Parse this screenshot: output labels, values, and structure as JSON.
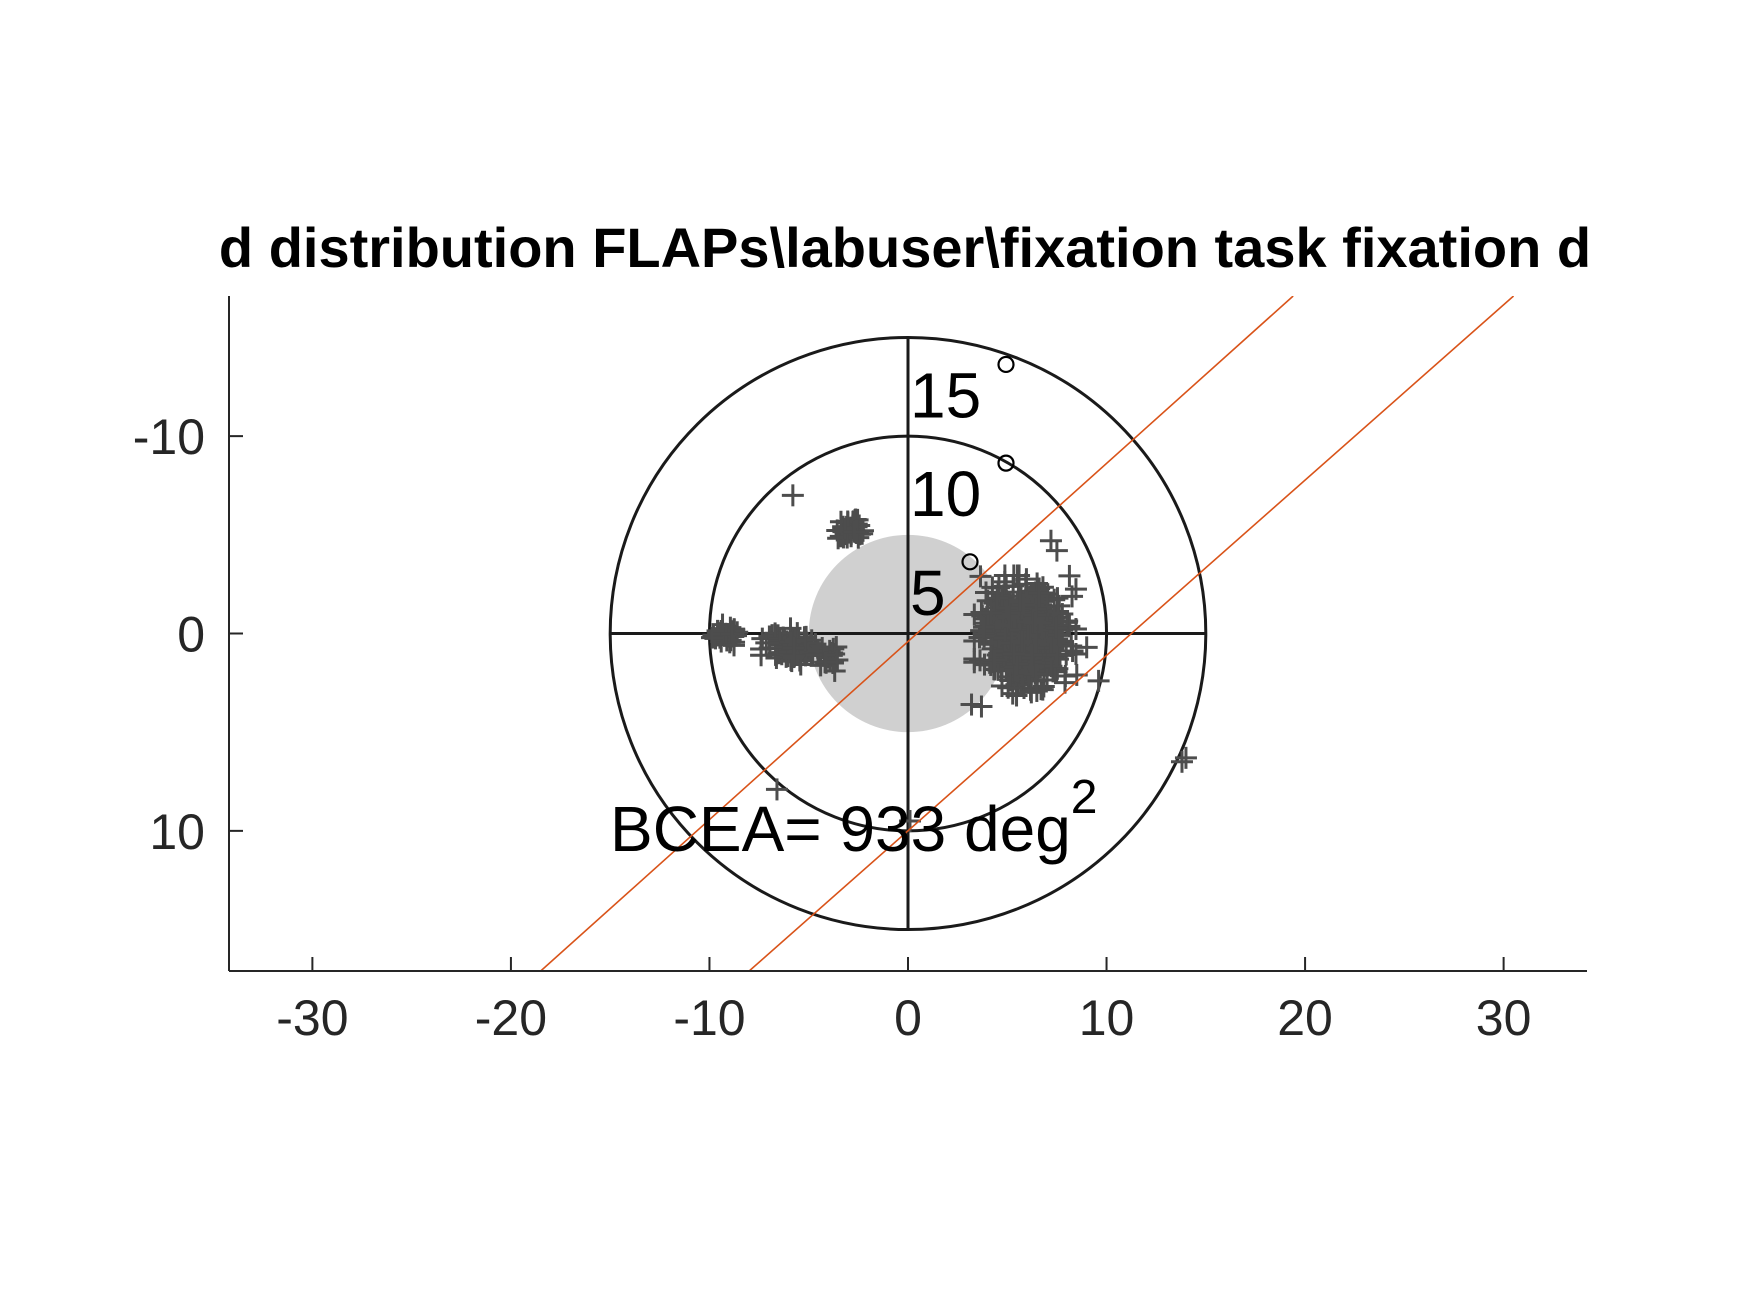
{
  "figure": {
    "background": "#ffffff"
  },
  "chart_data": {
    "type": "scatter",
    "title": "d distribution FLAPs\\labuser\\fixation task fixation d",
    "xlabel": "",
    "ylabel": "",
    "xlim": [
      -34.2,
      34.2
    ],
    "ylim": [
      -17.1,
      17.1
    ],
    "y_direction": "reversed",
    "x_ticks": [
      -30,
      -20,
      -10,
      0,
      10,
      20,
      30
    ],
    "x_tick_labels": [
      "-30",
      "-20",
      "-10",
      "0",
      "10",
      "20",
      "30"
    ],
    "y_ticks": [
      -10,
      0,
      10
    ],
    "y_tick_labels": [
      "-10",
      "0",
      "10"
    ],
    "axis_color": "#262626",
    "grid": false,
    "rings": [
      {
        "radius": 5,
        "label": "5",
        "degree_symbol": "°"
      },
      {
        "radius": 10,
        "label": "10",
        "degree_symbol": "°"
      },
      {
        "radius": 15,
        "label": "15",
        "degree_symbol": "°"
      }
    ],
    "ring_color": "#1a1a1a",
    "bcea_ellipse": {
      "center": [
        0,
        0
      ],
      "semi_x": 5,
      "semi_y": 5,
      "color": "#d0d0d0"
    },
    "bcea_label": {
      "prefix": "BCEA= 933 deg",
      "superscript": "2"
    },
    "lines": [
      {
        "name": "",
        "color": "#d95319",
        "points": [
          [
            -18.5,
            17.1
          ],
          [
            19.4,
            -17.1
          ]
        ]
      },
      {
        "name": "",
        "color": "#d95319",
        "points": [
          [
            -8.0,
            17.1
          ],
          [
            30.5,
            -17.1
          ]
        ]
      }
    ],
    "marker": "+",
    "marker_color": "#4d4d4d",
    "clusters": [
      {
        "center": [
          5.9,
          0.1
        ],
        "spread_x": 1.6,
        "spread_y": 1.9,
        "count": 650
      },
      {
        "center": [
          -5.8,
          0.7
        ],
        "spread_x": 1.0,
        "spread_y": 0.6,
        "count": 110
      },
      {
        "center": [
          -3.0,
          -5.3
        ],
        "spread_x": 0.5,
        "spread_y": 0.4,
        "count": 45
      },
      {
        "center": [
          -9.2,
          0.1
        ],
        "spread_x": 0.5,
        "spread_y": 0.4,
        "count": 35
      },
      {
        "center": [
          -3.9,
          1.1
        ],
        "spread_x": 0.4,
        "spread_y": 0.6,
        "count": 18
      }
    ],
    "outliers": [
      [
        -5.8,
        -7.0
      ],
      [
        7.2,
        -4.7
      ],
      [
        7.5,
        -4.2
      ],
      [
        9.6,
        2.4
      ],
      [
        9.0,
        0.7
      ],
      [
        14.0,
        6.3
      ],
      [
        13.8,
        6.5
      ],
      [
        -6.6,
        7.9
      ],
      [
        0.1,
        9.5
      ],
      [
        8.5,
        2.1
      ],
      [
        3.2,
        3.6
      ],
      [
        3.7,
        3.7
      ]
    ]
  }
}
